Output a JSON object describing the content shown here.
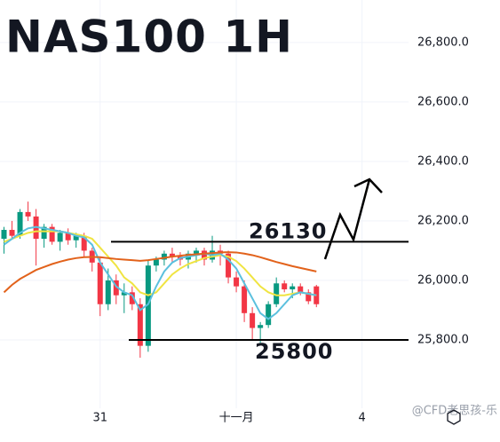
{
  "chart_data": {
    "type": "candlestick",
    "title": "NAS100 1H",
    "up_color": "#089981",
    "down_color": "#f23645",
    "open": [
      26140,
      26170,
      26150,
      26230,
      26215,
      26140,
      26180,
      26130,
      26160,
      26135,
      26150,
      26100,
      26060,
      25920,
      26000,
      25950,
      25960,
      25920,
      25780,
      26050,
      26070,
      26090,
      26080,
      26070,
      26090,
      26100,
      26070,
      26100,
      26090,
      26010,
      25980,
      25890,
      25840,
      25850,
      25920,
      25990,
      25970,
      25980,
      25960,
      25980
    ],
    "high": [
      26180,
      26200,
      26240,
      26265,
      26240,
      26190,
      26190,
      26170,
      26175,
      26160,
      26160,
      26110,
      26080,
      26040,
      26020,
      25990,
      25980,
      25940,
      26070,
      26080,
      26100,
      26110,
      26095,
      26100,
      26110,
      26110,
      26150,
      26120,
      26100,
      26030,
      26000,
      25910,
      25860,
      25930,
      26010,
      26000,
      25990,
      25990,
      25970,
      25985
    ],
    "low": [
      26090,
      26140,
      26140,
      26200,
      26050,
      26110,
      26120,
      26100,
      26120,
      26110,
      26080,
      26030,
      25880,
      25900,
      25920,
      25890,
      25900,
      25740,
      25760,
      26030,
      26050,
      26060,
      26050,
      26040,
      26060,
      26050,
      26060,
      26050,
      25990,
      25960,
      25860,
      25800,
      25790,
      25840,
      25910,
      25960,
      25940,
      25950,
      25920,
      25910
    ],
    "close": [
      26170,
      26150,
      26230,
      26215,
      26140,
      26180,
      26130,
      26160,
      26135,
      26150,
      26100,
      26060,
      25920,
      26000,
      25950,
      25960,
      25920,
      25780,
      26050,
      26070,
      26090,
      26080,
      26070,
      26090,
      26100,
      26070,
      26100,
      26090,
      26010,
      25980,
      25890,
      25840,
      25850,
      25920,
      25990,
      25970,
      25980,
      25960,
      25930,
      25920
    ],
    "lines": [
      {
        "color": "#f0e442",
        "values": [
          26130,
          26140,
          26150,
          26160,
          26165,
          26165,
          26165,
          26165,
          26160,
          26155,
          26150,
          26140,
          26110,
          26080,
          26050,
          26010,
          25990,
          25960,
          25950,
          25960,
          25990,
          26020,
          26040,
          26055,
          26065,
          26075,
          26080,
          26085,
          26080,
          26065,
          26040,
          26010,
          25980,
          25960,
          25950,
          25950,
          25955,
          25960,
          25955,
          25950
        ]
      },
      {
        "color": "#5bc0de",
        "values": [
          26120,
          26140,
          26160,
          26175,
          26180,
          26175,
          26170,
          26165,
          26160,
          26150,
          26145,
          26120,
          26060,
          26020,
          25980,
          25960,
          25950,
          25900,
          25920,
          25980,
          26030,
          26060,
          26075,
          26080,
          26085,
          26090,
          26085,
          26090,
          26070,
          26040,
          25990,
          25940,
          25890,
          25870,
          25890,
          25920,
          25950,
          25960,
          25955,
          25950
        ]
      },
      {
        "color": "#e2621b",
        "values": [
          25960,
          25985,
          26005,
          26020,
          26035,
          26045,
          26055,
          26063,
          26070,
          26075,
          26078,
          26079,
          26078,
          26075,
          26072,
          26070,
          26068,
          26066,
          26068,
          26072,
          26076,
          26080,
          26083,
          26086,
          26088,
          26090,
          26092,
          26094,
          26095,
          26094,
          26090,
          26085,
          26078,
          26070,
          26062,
          26055,
          26048,
          26042,
          26036,
          26030
        ]
      }
    ],
    "levels": [
      26130,
      25800
    ],
    "ylim": [
      25570,
      26943
    ],
    "yticks": [
      {
        "value": 26800,
        "label": "26,800.0"
      },
      {
        "value": 26600,
        "label": "26,600.0"
      },
      {
        "value": 26400,
        "label": "26,400.0"
      },
      {
        "value": 26200,
        "label": "26,200.0"
      },
      {
        "value": 26000,
        "label": "26,000.0"
      },
      {
        "value": 25800,
        "label": "25,800.0"
      }
    ],
    "xlim": [
      -0.5,
      50.5
    ],
    "xticks": [
      {
        "value": 12,
        "label": "31"
      },
      {
        "value": 29,
        "label": "十一月"
      },
      {
        "value": 44.7,
        "label": "4"
      }
    ],
    "grid": true,
    "watermark": "@CFD老思孩-乐"
  }
}
